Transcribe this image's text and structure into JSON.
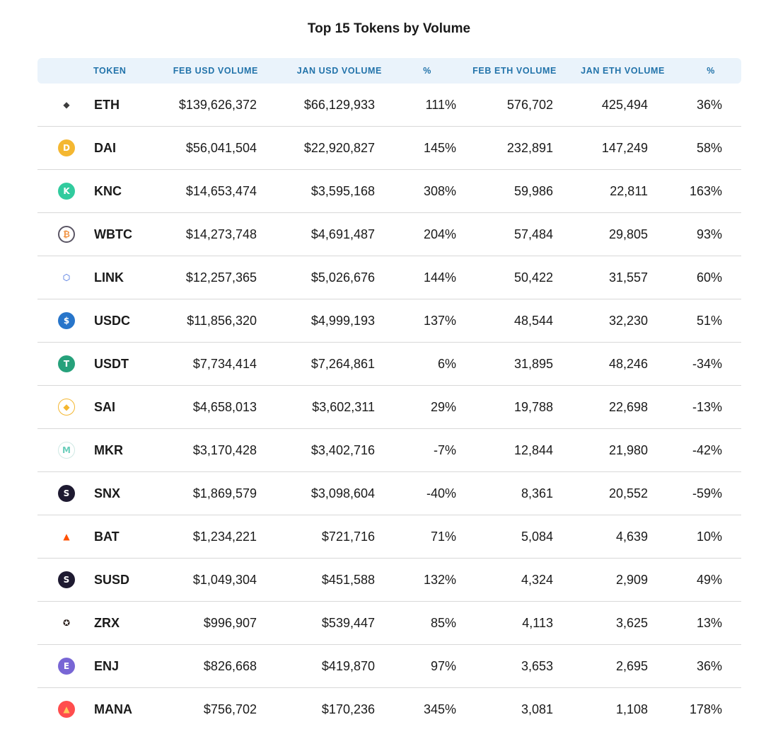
{
  "title": "Top 15 Tokens by Volume",
  "columns": [
    "TOKEN",
    "FEB USD VOLUME",
    "JAN USD VOLUME",
    "%",
    "FEB ETH VOLUME",
    "JAN ETH VOLUME",
    "%"
  ],
  "colors": {
    "header_bg": "#eaf3fb",
    "header_text": "#2273aa",
    "row_divider": "#d8d8d8"
  },
  "chart_data": {
    "type": "table",
    "title": "Top 15 Tokens by Volume",
    "columns": [
      "TOKEN",
      "FEB USD VOLUME",
      "JAN USD VOLUME",
      "%",
      "FEB ETH VOLUME",
      "JAN ETH VOLUME",
      "%"
    ],
    "rows": [
      {
        "icon": "eth-icon",
        "icon_color": "#ffffff",
        "glyph": "◆",
        "token": "ETH",
        "feb_usd": "$139,626,372",
        "jan_usd": "$66,129,933",
        "usd_pct": "111%",
        "feb_eth": "576,702",
        "jan_eth": "425,494",
        "eth_pct": "36%"
      },
      {
        "icon": "dai-icon",
        "icon_color": "#f4b731",
        "glyph": "D",
        "token": "DAI",
        "feb_usd": "$56,041,504",
        "jan_usd": "$22,920,827",
        "usd_pct": "145%",
        "feb_eth": "232,891",
        "jan_eth": "147,249",
        "eth_pct": "58%"
      },
      {
        "icon": "knc-icon",
        "icon_color": "#31cb9e",
        "glyph": "K",
        "token": "KNC",
        "feb_usd": "$14,653,474",
        "jan_usd": "$3,595,168",
        "usd_pct": "308%",
        "feb_eth": "59,986",
        "jan_eth": "22,811",
        "eth_pct": "163%"
      },
      {
        "icon": "wbtc-icon",
        "icon_color": "#ffffff",
        "glyph": "₿",
        "token": "WBTC",
        "feb_usd": "$14,273,748",
        "jan_usd": "$4,691,487",
        "usd_pct": "204%",
        "feb_eth": "57,484",
        "jan_eth": "29,805",
        "eth_pct": "93%"
      },
      {
        "icon": "link-icon",
        "icon_color": "#ffffff",
        "glyph": "⬡",
        "token": "LINK",
        "feb_usd": "$12,257,365",
        "jan_usd": "$5,026,676",
        "usd_pct": "144%",
        "feb_eth": "50,422",
        "jan_eth": "31,557",
        "eth_pct": "60%"
      },
      {
        "icon": "usdc-icon",
        "icon_color": "#2775ca",
        "glyph": "$",
        "token": "USDC",
        "feb_usd": "$11,856,320",
        "jan_usd": "$4,999,193",
        "usd_pct": "137%",
        "feb_eth": "48,544",
        "jan_eth": "32,230",
        "eth_pct": "51%"
      },
      {
        "icon": "usdt-icon",
        "icon_color": "#26a17b",
        "glyph": "T",
        "token": "USDT",
        "feb_usd": "$7,734,414",
        "jan_usd": "$7,264,861",
        "usd_pct": "6%",
        "feb_eth": "31,895",
        "jan_eth": "48,246",
        "eth_pct": "-34%"
      },
      {
        "icon": "sai-icon",
        "icon_color": "#ffffff",
        "glyph": "◆",
        "token": "SAI",
        "feb_usd": "$4,658,013",
        "jan_usd": "$3,602,311",
        "usd_pct": "29%",
        "feb_eth": "19,788",
        "jan_eth": "22,698",
        "eth_pct": "-13%"
      },
      {
        "icon": "mkr-icon",
        "icon_color": "#ffffff",
        "glyph": "M",
        "token": "MKR",
        "feb_usd": "$3,170,428",
        "jan_usd": "$3,402,716",
        "usd_pct": "-7%",
        "feb_eth": "12,844",
        "jan_eth": "21,980",
        "eth_pct": "-42%"
      },
      {
        "icon": "snx-icon",
        "icon_color": "#1e1a31",
        "glyph": "S",
        "token": "SNX",
        "feb_usd": "$1,869,579",
        "jan_usd": "$3,098,604",
        "usd_pct": "-40%",
        "feb_eth": "8,361",
        "jan_eth": "20,552",
        "eth_pct": "-59%"
      },
      {
        "icon": "bat-icon",
        "icon_color": "#ffffff",
        "glyph": "▲",
        "token": "BAT",
        "feb_usd": "$1,234,221",
        "jan_usd": "$721,716",
        "usd_pct": "71%",
        "feb_eth": "5,084",
        "jan_eth": "4,639",
        "eth_pct": "10%"
      },
      {
        "icon": "susd-icon",
        "icon_color": "#1e1a31",
        "glyph": "S",
        "token": "SUSD",
        "feb_usd": "$1,049,304",
        "jan_usd": "$451,588",
        "usd_pct": "132%",
        "feb_eth": "4,324",
        "jan_eth": "2,909",
        "eth_pct": "49%"
      },
      {
        "icon": "zrx-icon",
        "icon_color": "#ffffff",
        "glyph": "✪",
        "token": "ZRX",
        "feb_usd": "$996,907",
        "jan_usd": "$539,447",
        "usd_pct": "85%",
        "feb_eth": "4,113",
        "jan_eth": "3,625",
        "eth_pct": "13%"
      },
      {
        "icon": "enj-icon",
        "icon_color": "#7866d5",
        "glyph": "E",
        "token": "ENJ",
        "feb_usd": "$826,668",
        "jan_usd": "$419,870",
        "usd_pct": "97%",
        "feb_eth": "3,653",
        "jan_eth": "2,695",
        "eth_pct": "36%"
      },
      {
        "icon": "mana-icon",
        "icon_color": "#ff4d4d",
        "glyph": "▲",
        "token": "MANA",
        "feb_usd": "$756,702",
        "jan_usd": "$170,236",
        "usd_pct": "345%",
        "feb_eth": "3,081",
        "jan_eth": "1,108",
        "eth_pct": "178%"
      }
    ]
  }
}
